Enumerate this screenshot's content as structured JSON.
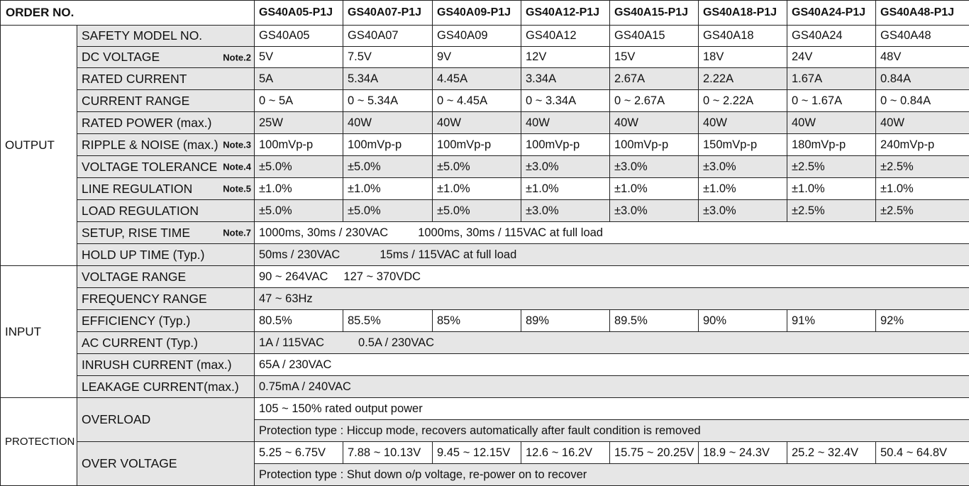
{
  "header": {
    "order_no": "ORDER NO.",
    "models": [
      "GS40A05-P1J",
      "GS40A07-P1J",
      "GS40A09-P1J",
      "GS40A12-P1J",
      "GS40A15-P1J",
      "GS40A18-P1J",
      "GS40A24-P1J",
      "GS40A48-P1J"
    ]
  },
  "output": {
    "title": "OUTPUT",
    "safety_model": {
      "label": "SAFETY MODEL NO.",
      "values": [
        "GS40A05",
        "GS40A07",
        "GS40A09",
        "GS40A12",
        "GS40A15",
        "GS40A18",
        "GS40A24",
        "GS40A48"
      ]
    },
    "dc_voltage": {
      "label": "DC VOLTAGE",
      "note": "Note.2",
      "values": [
        "5V",
        "7.5V",
        "9V",
        "12V",
        "15V",
        "18V",
        "24V",
        "48V"
      ]
    },
    "rated_current": {
      "label": "RATED CURRENT",
      "values": [
        "5A",
        "5.34A",
        "4.45A",
        "3.34A",
        "2.67A",
        "2.22A",
        "1.67A",
        "0.84A"
      ]
    },
    "current_range": {
      "label": "CURRENT RANGE",
      "values": [
        "0 ~ 5A",
        "0 ~ 5.34A",
        "0 ~ 4.45A",
        "0 ~ 3.34A",
        "0 ~ 2.67A",
        "0 ~ 2.22A",
        "0 ~ 1.67A",
        "0 ~ 0.84A"
      ]
    },
    "rated_power": {
      "label": "RATED POWER (max.)",
      "values": [
        "25W",
        "40W",
        "40W",
        "40W",
        "40W",
        "40W",
        "40W",
        "40W"
      ]
    },
    "ripple_noise": {
      "label": "RIPPLE & NOISE (max.)",
      "note": "Note.3",
      "values": [
        "100mVp-p",
        "100mVp-p",
        "100mVp-p",
        "100mVp-p",
        "100mVp-p",
        "150mVp-p",
        "180mVp-p",
        "240mVp-p"
      ]
    },
    "voltage_tolerance": {
      "label": "VOLTAGE TOLERANCE",
      "note": "Note.4",
      "values": [
        "±5.0%",
        "±5.0%",
        "±5.0%",
        "±3.0%",
        "±3.0%",
        "±3.0%",
        "±2.5%",
        "±2.5%"
      ]
    },
    "line_regulation": {
      "label": "LINE REGULATION",
      "note": "Note.5",
      "values": [
        "±1.0%",
        "±1.0%",
        "±1.0%",
        "±1.0%",
        "±1.0%",
        "±1.0%",
        "±1.0%",
        "±1.0%"
      ]
    },
    "load_regulation": {
      "label": "LOAD REGULATION",
      "values": [
        "±5.0%",
        "±5.0%",
        "±5.0%",
        "±3.0%",
        "±3.0%",
        "±3.0%",
        "±2.5%",
        "±2.5%"
      ]
    },
    "setup_rise": {
      "label": "SETUP, RISE TIME",
      "note": "Note.7",
      "value_a": "1000ms, 30ms / 230VAC",
      "value_b": "1000ms, 30ms / 115VAC  at full load"
    },
    "hold_up": {
      "label": "HOLD UP TIME (Typ.)",
      "value_a": "50ms / 230VAC",
      "value_b": "15ms / 115VAC  at full load"
    }
  },
  "input": {
    "title": "INPUT",
    "voltage_range": {
      "label": "VOLTAGE RANGE",
      "value_a": "90 ~ 264VAC",
      "value_b": "127 ~ 370VDC"
    },
    "frequency_range": {
      "label": "FREQUENCY RANGE",
      "value": "47 ~ 63Hz"
    },
    "efficiency": {
      "label": "EFFICIENCY (Typ.)",
      "values": [
        "80.5%",
        "85.5%",
        "85%",
        "89%",
        "89.5%",
        "90%",
        "91%",
        "92%"
      ]
    },
    "ac_current": {
      "label": "AC CURRENT (Typ.)",
      "value_a": "1A / 115VAC",
      "value_b": "0.5A / 230VAC"
    },
    "inrush_current": {
      "label": "INRUSH CURRENT (max.)",
      "value": "65A / 230VAC"
    },
    "leakage_current": {
      "label": "LEAKAGE CURRENT(max.)",
      "value": "0.75mA / 240VAC"
    }
  },
  "protection": {
    "title": "PROTECTION",
    "overload": {
      "label": "OVERLOAD",
      "value": "105 ~ 150%  rated output power",
      "type": "Protection type : Hiccup mode, recovers automatically after fault condition is removed"
    },
    "over_voltage": {
      "label": "OVER VOLTAGE",
      "values": [
        "5.25 ~ 6.75V",
        "7.88 ~ 10.13V",
        "9.45 ~ 12.15V",
        "12.6 ~ 16.2V",
        "15.75 ~ 20.25V",
        "18.9 ~ 24.3V",
        "25.2 ~ 32.4V",
        "50.4 ~ 64.8V"
      ],
      "type": "Protection type : Shut down o/p voltage, re-power on to recover"
    }
  }
}
